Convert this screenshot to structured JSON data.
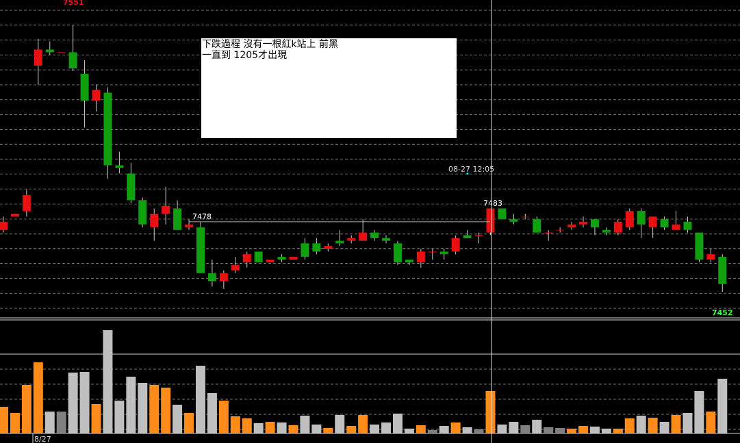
{
  "chart_data": {
    "type": "candlestick",
    "open": [
      7475,
      7480,
      7482,
      7536,
      7542,
      7541,
      7541,
      7533,
      7523,
      7526,
      7499,
      7496,
      7486,
      7476,
      7481,
      7483,
      7476,
      7476,
      7459,
      7456,
      7460,
      7463,
      7467,
      7463,
      7465,
      7464,
      7470,
      7470,
      7468,
      7471,
      7471,
      7471,
      7474,
      7472,
      7470,
      7464,
      7463,
      7467,
      7467,
      7467,
      7473,
      7473,
      7474,
      7483,
      7479,
      7480,
      7479,
      7474,
      7475,
      7476,
      7477,
      7479,
      7475,
      7474,
      7476,
      7482,
      7476,
      7479,
      7475,
      7478,
      7474,
      7464,
      7465
    ],
    "high": [
      7480,
      7481,
      7490,
      7546,
      7545,
      7541,
      7551,
      7538,
      7529,
      7528,
      7504,
      7500,
      7487,
      7483,
      7491,
      7486,
      7479,
      7478,
      7464,
      7460,
      7465,
      7467,
      7467,
      7464,
      7466,
      7465,
      7472,
      7472,
      7470,
      7475,
      7473,
      7479,
      7475,
      7473,
      7471,
      7464,
      7468,
      7468,
      7468,
      7473,
      7475,
      7474,
      7483,
      7483,
      7481,
      7481,
      7480,
      7475,
      7476,
      7478,
      7480,
      7479,
      7476,
      7479,
      7483,
      7483,
      7480,
      7480,
      7482,
      7480,
      7474,
      7468,
      7466
    ],
    "low": [
      7474,
      7480,
      7480,
      7529,
      7540,
      7541,
      7534,
      7513,
      7519,
      7494,
      7496,
      7485,
      7476,
      7471,
      7477,
      7475,
      7475,
      7459,
      7454,
      7453,
      7459,
      7461,
      7463,
      7463,
      7463,
      7464,
      7464,
      7466,
      7467,
      7469,
      7470,
      7471,
      7471,
      7470,
      7462,
      7462,
      7461,
      7464,
      7464,
      7466,
      7472,
      7470,
      7473,
      7479,
      7477,
      7479,
      7474,
      7471,
      7474,
      7475,
      7476,
      7473,
      7473,
      7473,
      7475,
      7472,
      7472,
      7475,
      7475,
      7474,
      7463,
      7463,
      7452
    ],
    "close": [
      7478,
      7481,
      7488,
      7542,
      7541,
      7541,
      7535,
      7523,
      7527,
      7499,
      7498,
      7486,
      7477,
      7481,
      7484,
      7475,
      7477,
      7459,
      7456,
      7459,
      7462,
      7466,
      7463,
      7464,
      7464,
      7465,
      7465,
      7467,
      7469,
      7470,
      7472,
      7474,
      7472,
      7471,
      7463,
      7463,
      7467,
      7467,
      7466,
      7472,
      7472,
      7473,
      7483,
      7479,
      7478,
      7480,
      7474,
      7474,
      7475,
      7477,
      7478,
      7476,
      7474,
      7478,
      7482,
      7477,
      7480,
      7476,
      7477,
      7475,
      7464,
      7466,
      7455
    ],
    "volumes": [
      39,
      30,
      71,
      104,
      32,
      32,
      89,
      90,
      43,
      151,
      48,
      83,
      74,
      71,
      67,
      42,
      30,
      99,
      59,
      48,
      25,
      22,
      15,
      17,
      16,
      12,
      26,
      13,
      8,
      27,
      11,
      27,
      13,
      16,
      29,
      7,
      12,
      5,
      11,
      16,
      9,
      6,
      62,
      13,
      17,
      12,
      20,
      9,
      8,
      7,
      11,
      10,
      7,
      7,
      22,
      26,
      23,
      17,
      27,
      30,
      62,
      32,
      80
    ],
    "volume_colors": [
      "#ff8c1a",
      "#ff8c1a",
      "#ff8c1a",
      "#ff8c1a",
      "#c0c0c0",
      "#808080",
      "#c0c0c0",
      "#c0c0c0",
      "#ff8c1a",
      "#c0c0c0",
      "#c0c0c0",
      "#c0c0c0",
      "#c0c0c0",
      "#ff8c1a",
      "#ff8c1a",
      "#c0c0c0",
      "#ff8c1a",
      "#c0c0c0",
      "#c0c0c0",
      "#ff8c1a",
      "#ff8c1a",
      "#ff8c1a",
      "#c0c0c0",
      "#ff8c1a",
      "#c0c0c0",
      "#ff8c1a",
      "#c0c0c0",
      "#c0c0c0",
      "#ff8c1a",
      "#c0c0c0",
      "#ff8c1a",
      "#ff8c1a",
      "#c0c0c0",
      "#c0c0c0",
      "#c0c0c0",
      "#c0c0c0",
      "#ff8c1a",
      "#808080",
      "#c0c0c0",
      "#ff8c1a",
      "#c0c0c0",
      "#808080",
      "#ff8c1a",
      "#c0c0c0",
      "#c0c0c0",
      "#808080",
      "#c0c0c0",
      "#808080",
      "#808080",
      "#ff8c1a",
      "#ff8c1a",
      "#c0c0c0",
      "#c0c0c0",
      "#ff8c1a",
      "#ff8c1a",
      "#c0c0c0",
      "#ff8c1a",
      "#c0c0c0",
      "#ff8c1a",
      "#c0c0c0",
      "#c0c0c0",
      "#ff8c1a",
      "#c0c0c0"
    ],
    "up_color": "#e81010",
    "down_color": "#10a010",
    "ylim": [
      7452,
      7551
    ],
    "volume_ylim": [
      0,
      151
    ],
    "high_label": 7551,
    "low_label": 7452,
    "reference": 7478,
    "recent_high": 7483,
    "cursor_time": "08-27 12:05",
    "date_label": "8/27",
    "annotation": [
      "下跌過程 沒有一根紅k站上 前黑",
      "一直到 1205才出現"
    ]
  }
}
